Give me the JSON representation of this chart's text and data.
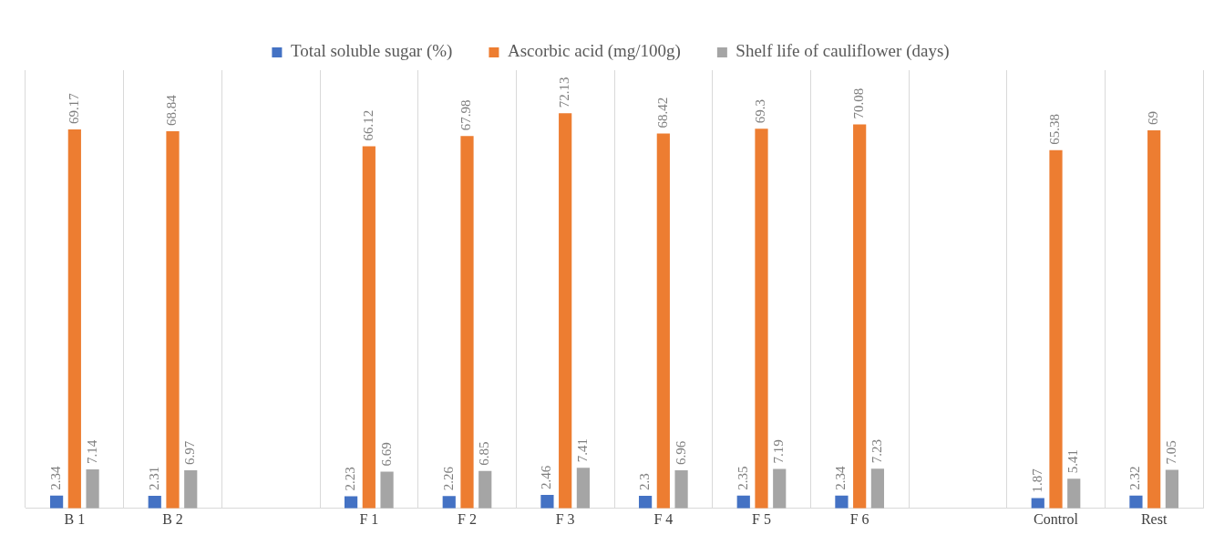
{
  "chart_data": {
    "type": "bar",
    "categories": [
      "B 1",
      "B 2",
      null,
      "F 1",
      "F 2",
      "F 3",
      "F 4",
      "F 5",
      "F 6",
      null,
      "Control",
      "Rest"
    ],
    "series": [
      {
        "name": "Total soluble sugar (%)",
        "color": "#4472c4",
        "values": [
          2.34,
          2.31,
          null,
          2.23,
          2.26,
          2.46,
          2.3,
          2.35,
          2.34,
          null,
          1.87,
          2.32
        ]
      },
      {
        "name": "Ascorbic acid (mg/100g)",
        "color": "#ed7d31",
        "values": [
          69.17,
          68.84,
          null,
          66.12,
          67.98,
          72.13,
          68.42,
          69.3,
          70.08,
          null,
          65.38,
          69
        ]
      },
      {
        "name": "Shelf life of cauliflower (days)",
        "color": "#a5a5a5",
        "values": [
          7.14,
          6.97,
          null,
          6.69,
          6.85,
          7.41,
          6.96,
          7.19,
          7.23,
          null,
          5.41,
          7.05
        ]
      }
    ],
    "data_labels": true,
    "grid": "x",
    "legend": "top"
  }
}
